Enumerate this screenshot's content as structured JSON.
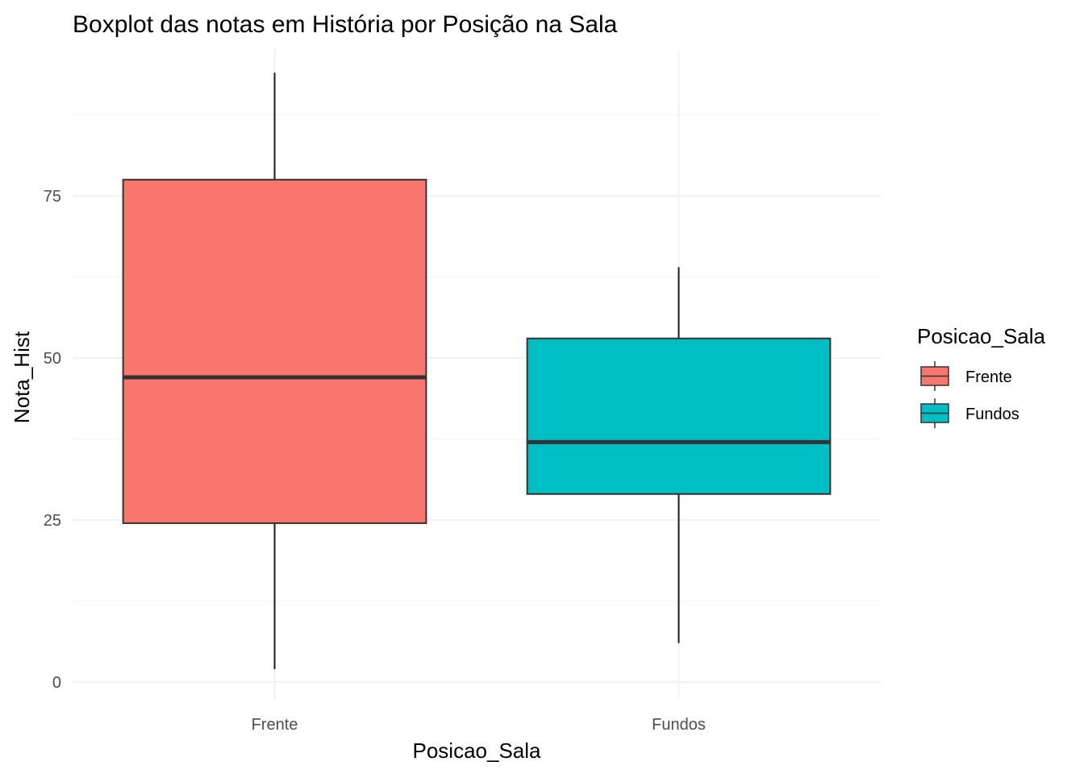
{
  "chart_data": {
    "type": "boxplot",
    "title": "Boxplot das notas em História por Posição na Sala",
    "xlabel": "Posicao_Sala",
    "ylabel": "Nota_Hist",
    "categories": [
      "Frente",
      "Fundos"
    ],
    "ylim": [
      -2.5,
      97.5
    ],
    "yticks": [
      0,
      25,
      50,
      75
    ],
    "grid": true,
    "legend": {
      "title": "Posicao_Sala",
      "placement": "right",
      "entries": [
        "Frente",
        "Fundos"
      ]
    },
    "series": [
      {
        "name": "Frente",
        "color": "#F8766D",
        "min": 2,
        "q1": 24.5,
        "median": 47,
        "q3": 77.5,
        "max": 94
      },
      {
        "name": "Fundos",
        "color": "#00BFC4",
        "min": 6,
        "q1": 29,
        "median": 37,
        "q3": 53,
        "max": 64
      }
    ]
  }
}
